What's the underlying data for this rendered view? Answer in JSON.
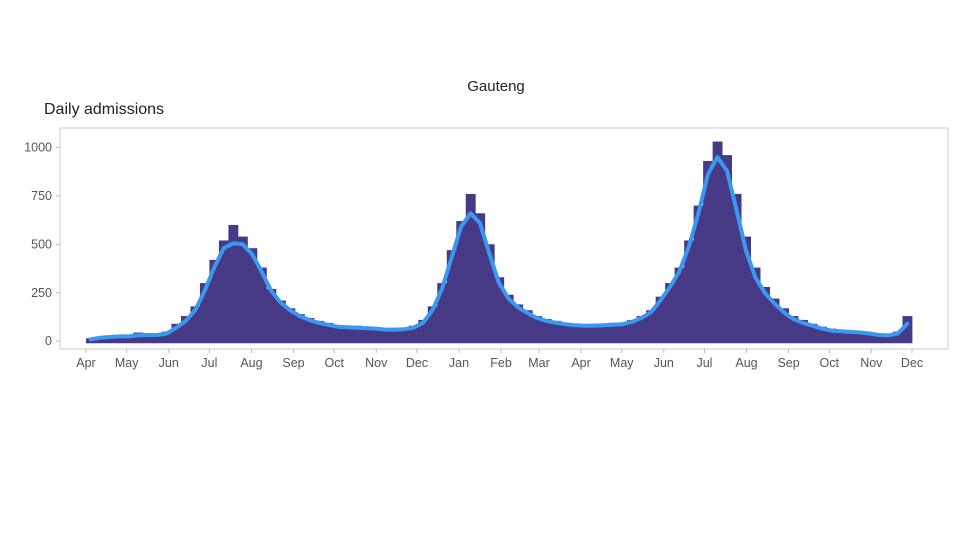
{
  "chart_data": {
    "type": "bar",
    "title": "Gauteng",
    "ylabel": "Daily admissions",
    "xlabel": "",
    "ylim": [
      -40,
      1100
    ],
    "yticks": [
      0,
      250,
      500,
      750,
      1000
    ],
    "xticks": [
      {
        "date": "2020-04-01",
        "label": "Apr"
      },
      {
        "date": "2020-05-01",
        "label": "May"
      },
      {
        "date": "2020-06-01",
        "label": "Jun"
      },
      {
        "date": "2020-07-01",
        "label": "Jul"
      },
      {
        "date": "2020-08-01",
        "label": "Aug"
      },
      {
        "date": "2020-09-01",
        "label": "Sep"
      },
      {
        "date": "2020-10-01",
        "label": "Oct"
      },
      {
        "date": "2020-11-01",
        "label": "Nov"
      },
      {
        "date": "2020-12-01",
        "label": "Dec"
      },
      {
        "date": "2021-01-01",
        "label": "Jan"
      },
      {
        "date": "2021-02-01",
        "label": "Feb"
      },
      {
        "date": "2021-03-01",
        "label": "Mar"
      },
      {
        "date": "2021-04-01",
        "label": "Apr"
      },
      {
        "date": "2021-05-01",
        "label": "May"
      },
      {
        "date": "2021-06-01",
        "label": "Jun"
      },
      {
        "date": "2021-07-01",
        "label": "Jul"
      },
      {
        "date": "2021-08-01",
        "label": "Aug"
      },
      {
        "date": "2021-09-01",
        "label": "Sep"
      },
      {
        "date": "2021-10-01",
        "label": "Oct"
      },
      {
        "date": "2021-11-01",
        "label": "Nov"
      },
      {
        "date": "2021-12-01",
        "label": "Dec"
      }
    ],
    "x_start": "2020-04-01",
    "bin_days": 7,
    "grid": false,
    "colors": {
      "bars": "#463a86",
      "line": "#3a98f0"
    },
    "series": [
      {
        "type": "bar",
        "values": [
          15,
          25,
          25,
          30,
          30,
          45,
          40,
          40,
          50,
          90,
          130,
          180,
          300,
          420,
          520,
          600,
          540,
          480,
          380,
          270,
          210,
          170,
          140,
          120,
          105,
          95,
          80,
          80,
          80,
          75,
          70,
          65,
          65,
          70,
          80,
          110,
          180,
          300,
          470,
          620,
          760,
          660,
          500,
          330,
          240,
          190,
          160,
          130,
          115,
          105,
          95,
          90,
          85,
          90,
          90,
          95,
          95,
          110,
          130,
          160,
          230,
          300,
          380,
          520,
          700,
          930,
          1030,
          960,
          760,
          540,
          380,
          280,
          220,
          170,
          130,
          110,
          90,
          75,
          65,
          60,
          55,
          50,
          45,
          40,
          40,
          50,
          130
        ]
      },
      {
        "type": "line",
        "values": [
          10,
          18,
          22,
          25,
          25,
          30,
          32,
          32,
          40,
          70,
          105,
          160,
          260,
          380,
          480,
          505,
          500,
          450,
          360,
          260,
          200,
          160,
          130,
          110,
          95,
          85,
          75,
          72,
          70,
          68,
          65,
          60,
          60,
          62,
          70,
          95,
          160,
          270,
          430,
          590,
          660,
          610,
          450,
          300,
          220,
          175,
          145,
          120,
          105,
          95,
          88,
          82,
          80,
          80,
          82,
          85,
          88,
          100,
          120,
          150,
          210,
          280,
          360,
          490,
          660,
          860,
          950,
          880,
          680,
          470,
          330,
          250,
          195,
          150,
          115,
          95,
          80,
          65,
          55,
          52,
          48,
          45,
          40,
          32,
          30,
          40,
          90
        ]
      }
    ]
  }
}
